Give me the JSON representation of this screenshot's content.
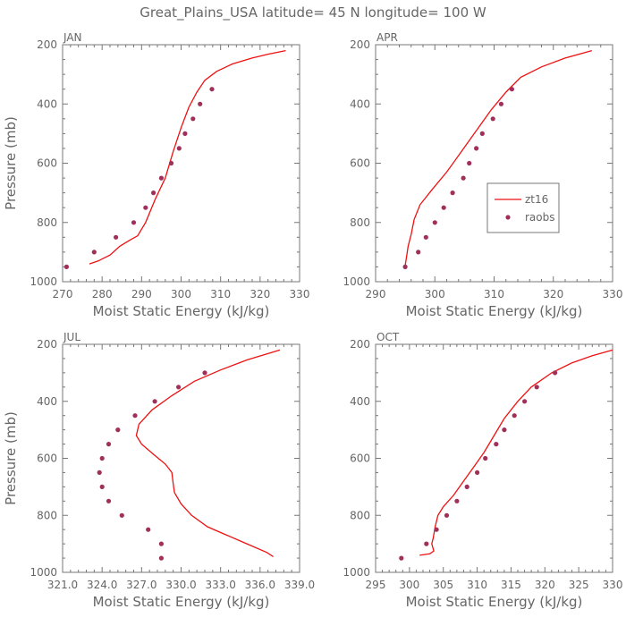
{
  "figure": {
    "title": "Great_Plains_USA   latitude= 45 N longitude= 100 W"
  },
  "colors": {
    "model": "#ee1111",
    "obs": "#a0305a",
    "axis": "#777777",
    "text": "#666666"
  },
  "chart_data": [
    {
      "type": "line",
      "panel_label": "JAN",
      "xlabel": "Moist Static Energy (kJ/kg)",
      "ylabel": "Pressure (mb)",
      "xlim": [
        270,
        330
      ],
      "ylim": [
        1000,
        200
      ],
      "x_ticks": [
        270,
        280,
        290,
        300,
        310,
        320,
        330
      ],
      "x_tick_labels": [
        "270",
        "280",
        "290",
        "300",
        "310",
        "320",
        "330"
      ],
      "y_ticks": [
        200,
        400,
        600,
        800,
        1000
      ],
      "y_tick_labels": [
        "200",
        "400",
        "600",
        "800",
        "1000"
      ],
      "series": [
        {
          "name": "zt16",
          "kind": "line",
          "points": [
            [
              276.8,
              940
            ],
            [
              279,
              930
            ],
            [
              282,
              910
            ],
            [
              284.5,
              880
            ],
            [
              287,
              860
            ],
            [
              289,
              845
            ],
            [
              291,
              800
            ],
            [
              293.5,
              720
            ],
            [
              296,
              650
            ],
            [
              298,
              560
            ],
            [
              300,
              480
            ],
            [
              302,
              410
            ],
            [
              304,
              360
            ],
            [
              306,
              320
            ],
            [
              309,
              290
            ],
            [
              313,
              265
            ],
            [
              318,
              245
            ],
            [
              322,
              232
            ],
            [
              326.5,
              220
            ]
          ]
        },
        {
          "name": "raobs",
          "kind": "points",
          "points": [
            [
              271,
              950
            ],
            [
              278,
              900
            ],
            [
              283.5,
              850
            ],
            [
              288,
              800
            ],
            [
              291,
              750
            ],
            [
              293,
              700
            ],
            [
              295,
              650
            ],
            [
              297.5,
              600
            ],
            [
              299.5,
              550
            ],
            [
              301,
              500
            ],
            [
              303,
              450
            ],
            [
              304.8,
              400
            ],
            [
              307.8,
              350
            ]
          ]
        }
      ]
    },
    {
      "type": "line",
      "panel_label": "APR",
      "xlabel": "Moist Static Energy (kJ/kg)",
      "ylabel": "Pressure (mb)",
      "xlim": [
        290,
        330
      ],
      "ylim": [
        1000,
        200
      ],
      "x_ticks": [
        290,
        300,
        310,
        320,
        330
      ],
      "x_tick_labels": [
        "290",
        "300",
        "310",
        "320",
        "330"
      ],
      "y_ticks": [
        200,
        400,
        600,
        800,
        1000
      ],
      "y_tick_labels": [
        "200",
        "400",
        "600",
        "800",
        "1000"
      ],
      "series": [
        {
          "name": "zt16",
          "kind": "line",
          "points": [
            [
              295,
              945
            ],
            [
              295.2,
              920
            ],
            [
              295.5,
              880
            ],
            [
              296,
              840
            ],
            [
              296.5,
              790
            ],
            [
              297.5,
              740
            ],
            [
              299.5,
              690
            ],
            [
              302,
              630
            ],
            [
              304.5,
              560
            ],
            [
              307,
              490
            ],
            [
              309.5,
              420
            ],
            [
              312,
              360
            ],
            [
              314.5,
              310
            ],
            [
              318,
              275
            ],
            [
              322,
              245
            ],
            [
              326.5,
              220
            ]
          ]
        },
        {
          "name": "raobs",
          "kind": "points",
          "points": [
            [
              295,
              950
            ],
            [
              297.2,
              900
            ],
            [
              298.5,
              850
            ],
            [
              300,
              800
            ],
            [
              301.5,
              750
            ],
            [
              303,
              700
            ],
            [
              304.8,
              650
            ],
            [
              305.8,
              600
            ],
            [
              307,
              550
            ],
            [
              308,
              500
            ],
            [
              309.8,
              450
            ],
            [
              311.2,
              400
            ],
            [
              313,
              350
            ]
          ]
        }
      ],
      "legend": {
        "entries": [
          "zt16",
          "raobs"
        ],
        "placement": "inside-right"
      }
    },
    {
      "type": "line",
      "panel_label": "JUL",
      "xlabel": "Moist Static Energy (kJ/kg)",
      "ylabel": "Pressure (mb)",
      "xlim": [
        321,
        339
      ],
      "ylim": [
        1000,
        200
      ],
      "x_ticks": [
        321,
        324,
        327,
        330,
        333,
        336,
        339
      ],
      "x_tick_labels": [
        "321.0",
        "324.0",
        "327.0",
        "330.0",
        "333.0",
        "336.0",
        "339.0"
      ],
      "y_ticks": [
        200,
        400,
        600,
        800,
        1000
      ],
      "y_tick_labels": [
        "200",
        "400",
        "600",
        "800",
        "1000"
      ],
      "series": [
        {
          "name": "zt16",
          "kind": "line",
          "points": [
            [
              337,
              945
            ],
            [
              336.5,
              930
            ],
            [
              335,
              900
            ],
            [
              333.5,
              870
            ],
            [
              332,
              840
            ],
            [
              330.8,
              800
            ],
            [
              330,
              760
            ],
            [
              329.5,
              720
            ],
            [
              329.4,
              690
            ],
            [
              329.3,
              650
            ],
            [
              328.8,
              620
            ],
            [
              328,
              590
            ],
            [
              327,
              550
            ],
            [
              326.6,
              520
            ],
            [
              326.8,
              480
            ],
            [
              327.8,
              430
            ],
            [
              329.3,
              380
            ],
            [
              331,
              330
            ],
            [
              333,
              290
            ],
            [
              335,
              255
            ],
            [
              337.5,
              220
            ]
          ]
        },
        {
          "name": "raobs",
          "kind": "points",
          "points": [
            [
              328.5,
              950
            ],
            [
              328.5,
              900
            ],
            [
              327.5,
              850
            ],
            [
              325.5,
              800
            ],
            [
              324.5,
              750
            ],
            [
              324,
              700
            ],
            [
              323.8,
              650
            ],
            [
              324,
              600
            ],
            [
              324.5,
              550
            ],
            [
              325.2,
              500
            ],
            [
              326.5,
              450
            ],
            [
              328,
              400
            ],
            [
              329.8,
              350
            ],
            [
              331.8,
              300
            ]
          ]
        }
      ]
    },
    {
      "type": "line",
      "panel_label": "OCT",
      "xlabel": "Moist Static Energy (kJ/kg)",
      "ylabel": "Pressure (mb)",
      "xlim": [
        295,
        330
      ],
      "ylim": [
        1000,
        200
      ],
      "x_ticks": [
        295,
        300,
        305,
        310,
        315,
        320,
        325,
        330
      ],
      "x_tick_labels": [
        "295",
        "300",
        "305",
        "310",
        "315",
        "320",
        "325",
        "330"
      ],
      "y_ticks": [
        200,
        400,
        600,
        800,
        1000
      ],
      "y_tick_labels": [
        "200",
        "400",
        "600",
        "800",
        "1000"
      ],
      "series": [
        {
          "name": "zt16",
          "kind": "line",
          "points": [
            [
              301.5,
              940
            ],
            [
              303,
              935
            ],
            [
              303.6,
              925
            ],
            [
              303.3,
              900
            ],
            [
              303.5,
              880
            ],
            [
              303.8,
              840
            ],
            [
              304.2,
              800
            ],
            [
              305,
              770
            ],
            [
              306.5,
              730
            ],
            [
              308,
              680
            ],
            [
              309.5,
              630
            ],
            [
              311,
              580
            ],
            [
              312.5,
              520
            ],
            [
              314,
              460
            ],
            [
              316,
              400
            ],
            [
              318,
              350
            ],
            [
              321,
              300
            ],
            [
              324,
              265
            ],
            [
              327,
              240
            ],
            [
              330,
              220
            ]
          ]
        },
        {
          "name": "raobs",
          "kind": "points",
          "points": [
            [
              298.8,
              950
            ],
            [
              302.5,
              900
            ],
            [
              304,
              850
            ],
            [
              305.5,
              800
            ],
            [
              307,
              750
            ],
            [
              308.5,
              700
            ],
            [
              310,
              650
            ],
            [
              311.2,
              600
            ],
            [
              312.8,
              550
            ],
            [
              314,
              500
            ],
            [
              315.5,
              450
            ],
            [
              317,
              400
            ],
            [
              318.8,
              350
            ],
            [
              321.5,
              300
            ]
          ]
        }
      ]
    }
  ]
}
